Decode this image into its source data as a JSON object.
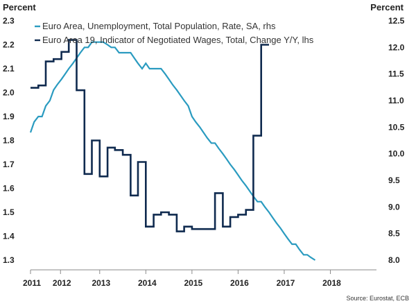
{
  "chart_data": {
    "type": "line",
    "left_axis_label": "Percent",
    "right_axis_label": "Percent",
    "ylim_left": [
      1.3,
      2.3
    ],
    "ylim_right": [
      8.0,
      12.5
    ],
    "yticks_left": [
      "1.3",
      "1.4",
      "1.5",
      "1.6",
      "1.7",
      "1.8",
      "1.9",
      "2.0",
      "2.1",
      "2.2",
      "2.3"
    ],
    "yticks_right": [
      "8.0",
      "8.5",
      "9.0",
      "9.5",
      "10.0",
      "10.5",
      "11.0",
      "11.5",
      "12.0",
      "12.5"
    ],
    "xlim": [
      2011.0,
      2018.5
    ],
    "x_tick_labels": [
      {
        "label": "2011",
        "at": 2011.0
      },
      {
        "label": "2012",
        "at": 2011.65
      },
      {
        "label": "2013",
        "at": 2012.5
      },
      {
        "label": "2014",
        "at": 2013.5
      },
      {
        "label": "2015",
        "at": 2014.5
      },
      {
        "label": "2016",
        "at": 2015.5
      },
      {
        "label": "2017",
        "at": 2016.5
      },
      {
        "label": "2018",
        "at": 2017.5
      }
    ],
    "legend_position": "top-left",
    "source": "Source: Eurostat, ECB",
    "series": [
      {
        "name": "Euro Area, Unemployment, Total Population, Rate, SA, rhs",
        "axis": "right",
        "color": "#2a9bc0",
        "points": [
          [
            2011.0,
            10.4
          ],
          [
            2011.08,
            10.6
          ],
          [
            2011.17,
            10.7
          ],
          [
            2011.25,
            10.7
          ],
          [
            2011.33,
            10.9
          ],
          [
            2011.42,
            11.0
          ],
          [
            2011.5,
            11.2
          ],
          [
            2011.58,
            11.3
          ],
          [
            2011.67,
            11.4
          ],
          [
            2011.75,
            11.5
          ],
          [
            2011.83,
            11.6
          ],
          [
            2011.92,
            11.7
          ],
          [
            2012.0,
            11.8
          ],
          [
            2012.08,
            11.9
          ],
          [
            2012.17,
            12.0
          ],
          [
            2012.25,
            12.0
          ],
          [
            2012.33,
            12.1
          ],
          [
            2012.42,
            12.1
          ],
          [
            2012.5,
            12.1
          ],
          [
            2012.58,
            12.1
          ],
          [
            2012.67,
            12.05
          ],
          [
            2012.75,
            12.0
          ],
          [
            2012.83,
            12.0
          ],
          [
            2012.92,
            11.9
          ],
          [
            2013.0,
            11.9
          ],
          [
            2013.08,
            11.9
          ],
          [
            2013.17,
            11.9
          ],
          [
            2013.25,
            11.8
          ],
          [
            2013.33,
            11.7
          ],
          [
            2013.42,
            11.6
          ],
          [
            2013.5,
            11.7
          ],
          [
            2013.58,
            11.6
          ],
          [
            2013.67,
            11.6
          ],
          [
            2013.75,
            11.6
          ],
          [
            2013.83,
            11.6
          ],
          [
            2013.92,
            11.5
          ],
          [
            2014.0,
            11.4
          ],
          [
            2014.08,
            11.3
          ],
          [
            2014.17,
            11.2
          ],
          [
            2014.25,
            11.1
          ],
          [
            2014.33,
            11.0
          ],
          [
            2014.42,
            10.9
          ],
          [
            2014.5,
            10.7
          ],
          [
            2014.58,
            10.6
          ],
          [
            2014.67,
            10.5
          ],
          [
            2014.75,
            10.4
          ],
          [
            2014.83,
            10.3
          ],
          [
            2014.92,
            10.2
          ],
          [
            2015.0,
            10.2
          ],
          [
            2015.08,
            10.1
          ],
          [
            2015.17,
            10.0
          ],
          [
            2015.25,
            9.9
          ],
          [
            2015.33,
            9.8
          ],
          [
            2015.42,
            9.7
          ],
          [
            2015.5,
            9.6
          ],
          [
            2015.58,
            9.5
          ],
          [
            2015.67,
            9.4
          ],
          [
            2015.75,
            9.3
          ],
          [
            2015.83,
            9.2
          ],
          [
            2015.92,
            9.1
          ],
          [
            2016.0,
            9.1
          ],
          [
            2016.08,
            9.0
          ],
          [
            2016.17,
            8.9
          ],
          [
            2016.25,
            8.8
          ],
          [
            2016.33,
            8.7
          ],
          [
            2016.42,
            8.6
          ],
          [
            2016.5,
            8.5
          ],
          [
            2016.58,
            8.4
          ],
          [
            2016.67,
            8.3
          ],
          [
            2016.75,
            8.3
          ],
          [
            2016.83,
            8.2
          ],
          [
            2016.92,
            8.1
          ],
          [
            2017.0,
            8.1
          ],
          [
            2017.08,
            8.05
          ],
          [
            2017.17,
            8.0
          ]
        ]
      },
      {
        "name": "Euro Area 19, Indicator of Negotiated Wages, Total, Change Y/Y, lhs",
        "axis": "left",
        "color": "#0f2a4f",
        "points": [
          [
            2011.0,
            2.02
          ],
          [
            2011.17,
            2.02
          ],
          [
            2011.17,
            2.03
          ],
          [
            2011.33,
            2.03
          ],
          [
            2011.33,
            2.13
          ],
          [
            2011.5,
            2.13
          ],
          [
            2011.5,
            2.14
          ],
          [
            2011.67,
            2.14
          ],
          [
            2011.67,
            2.17
          ],
          [
            2011.83,
            2.17
          ],
          [
            2011.83,
            2.22
          ],
          [
            2012.0,
            2.22
          ],
          [
            2012.0,
            2.01
          ],
          [
            2012.17,
            2.01
          ],
          [
            2012.17,
            1.66
          ],
          [
            2012.33,
            1.66
          ],
          [
            2012.33,
            1.8
          ],
          [
            2012.5,
            1.8
          ],
          [
            2012.5,
            1.65
          ],
          [
            2012.67,
            1.65
          ],
          [
            2012.67,
            1.77
          ],
          [
            2012.83,
            1.77
          ],
          [
            2012.83,
            1.76
          ],
          [
            2013.0,
            1.76
          ],
          [
            2013.0,
            1.74
          ],
          [
            2013.17,
            1.74
          ],
          [
            2013.17,
            1.57
          ],
          [
            2013.33,
            1.57
          ],
          [
            2013.33,
            1.71
          ],
          [
            2013.5,
            1.71
          ],
          [
            2013.5,
            1.44
          ],
          [
            2013.67,
            1.44
          ],
          [
            2013.67,
            1.49
          ],
          [
            2013.83,
            1.49
          ],
          [
            2013.83,
            1.5
          ],
          [
            2014.0,
            1.5
          ],
          [
            2014.0,
            1.49
          ],
          [
            2014.17,
            1.49
          ],
          [
            2014.17,
            1.42
          ],
          [
            2014.33,
            1.42
          ],
          [
            2014.33,
            1.44
          ],
          [
            2014.5,
            1.44
          ],
          [
            2014.5,
            1.43
          ],
          [
            2014.67,
            1.43
          ],
          [
            2014.67,
            1.43
          ],
          [
            2014.83,
            1.43
          ],
          [
            2014.83,
            1.43
          ],
          [
            2015.0,
            1.43
          ],
          [
            2015.0,
            1.58
          ],
          [
            2015.17,
            1.58
          ],
          [
            2015.17,
            1.44
          ],
          [
            2015.33,
            1.44
          ],
          [
            2015.33,
            1.48
          ],
          [
            2015.5,
            1.48
          ],
          [
            2015.5,
            1.49
          ],
          [
            2015.67,
            1.49
          ],
          [
            2015.67,
            1.51
          ],
          [
            2015.83,
            1.51
          ],
          [
            2015.83,
            1.82
          ],
          [
            2016.0,
            1.82
          ],
          [
            2016.0,
            2.2
          ],
          [
            2016.17,
            2.2
          ]
        ]
      }
    ]
  }
}
